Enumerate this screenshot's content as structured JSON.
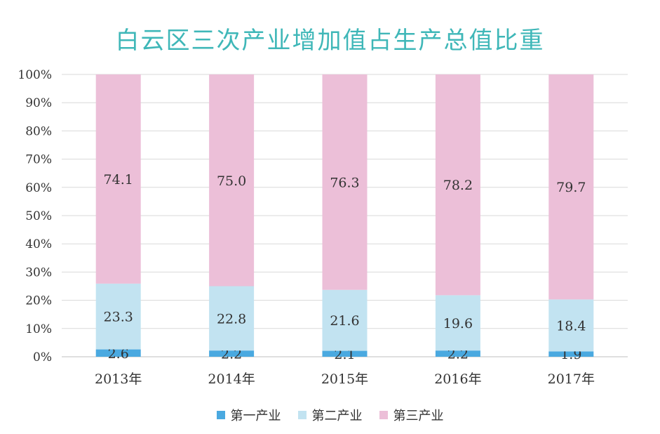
{
  "chart_data": {
    "type": "bar",
    "stacked": true,
    "title": "白云区三次产业增加值占生产总值比重",
    "categories": [
      "2013年",
      "2014年",
      "2015年",
      "2016年",
      "2017年"
    ],
    "series": [
      {
        "name": "第一产业",
        "color": "#4aa9e0",
        "values": [
          2.6,
          2.2,
          2.1,
          2.2,
          1.9
        ],
        "labels": [
          "2.6",
          "2.2",
          "2.1",
          "2.2",
          "1.9"
        ]
      },
      {
        "name": "第二产业",
        "color": "#c2e3f1",
        "values": [
          23.3,
          22.8,
          21.6,
          19.6,
          18.4
        ],
        "labels": [
          "23.3",
          "22.8",
          "21.6",
          "19.6",
          "18.4"
        ]
      },
      {
        "name": "第三产业",
        "color": "#ecbfd8",
        "values": [
          74.1,
          75.0,
          76.3,
          78.2,
          79.7
        ],
        "labels": [
          "74.1",
          "75.0",
          "76.3",
          "78.2",
          "79.7"
        ]
      }
    ],
    "yticks": [
      "0%",
      "10%",
      "20%",
      "30%",
      "40%",
      "50%",
      "60%",
      "70%",
      "80%",
      "90%",
      "100%"
    ],
    "ylim": [
      0,
      100
    ],
    "grid": true,
    "legend": "bottom"
  }
}
